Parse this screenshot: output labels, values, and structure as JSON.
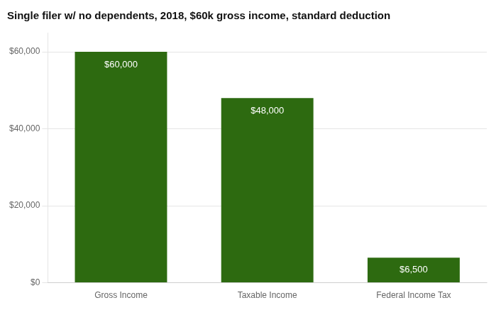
{
  "chart_data": {
    "type": "bar",
    "title": "Single filer w/ no dependents, 2018, $60k gross income, standard deduction",
    "categories": [
      "Gross Income",
      "Taxable Income",
      "Federal Income Tax"
    ],
    "values": [
      60000,
      48000,
      6500
    ],
    "value_labels": [
      "$60,000",
      "$48,000",
      "$6,500"
    ],
    "data_labels": true,
    "color": "#2d6a10",
    "ylim": [
      0,
      65000
    ],
    "yticks": [
      {
        "value": 0,
        "label": "$0"
      },
      {
        "value": 20000,
        "label": "$20,000"
      },
      {
        "value": 40000,
        "label": "$40,000"
      },
      {
        "value": 60000,
        "label": "$60,000"
      }
    ],
    "grid": true
  }
}
